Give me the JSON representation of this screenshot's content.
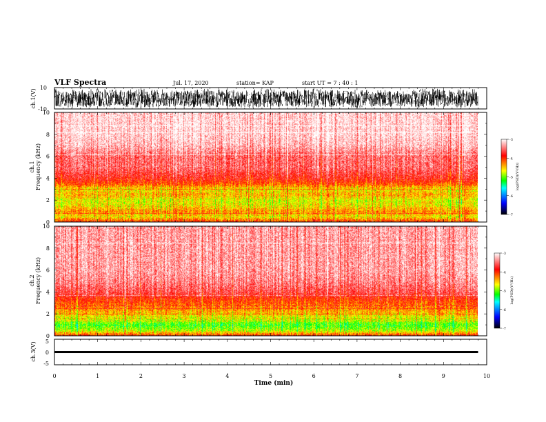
{
  "header": {
    "title": "VLF Spectra",
    "date": "Jul. 17, 2020",
    "station": "station= KAP",
    "start": "start UT =  7 : 40 : 1"
  },
  "colors": {
    "axis": "#000000",
    "background": "#ffffff",
    "colormap": [
      "#000000",
      "#0000ff",
      "#00ff00",
      "#ffff00",
      "#ff0000",
      "#ffffff"
    ]
  },
  "chart_data": [
    {
      "type": "line",
      "panel": "ch1-waveform",
      "ylabel": "ch.1(V)",
      "ylim": [
        -10,
        10
      ],
      "yticks": [
        "10",
        "-10"
      ],
      "xlim": [
        0,
        10
      ],
      "x": [
        0,
        0.5,
        1,
        1.5,
        2,
        2.5,
        3,
        3.5,
        4,
        4.5,
        5,
        5.5,
        6,
        6.5,
        7,
        7.5,
        8,
        8.5,
        9,
        9.5,
        9.8
      ],
      "envelope_max": [
        9,
        8,
        9,
        8,
        9,
        9,
        8,
        9,
        8,
        8,
        9,
        8,
        9,
        9,
        8,
        9,
        8,
        9,
        9,
        8,
        9
      ],
      "envelope_min": [
        -8,
        -9,
        -8,
        -8,
        -9,
        -8,
        -8,
        -9,
        -8,
        -9,
        -8,
        -8,
        -9,
        -8,
        -9,
        -8,
        -8,
        -9,
        -8,
        -9,
        -8
      ]
    },
    {
      "type": "heatmap",
      "panel": "ch1-spectrogram",
      "ylabel": "Frequency (kHz)",
      "channel_label": "ch.1",
      "xlim": [
        0,
        9.8
      ],
      "ylim": [
        0,
        10
      ],
      "yticks": [
        "0",
        "2",
        "4",
        "6",
        "8",
        "10"
      ],
      "colorbar": {
        "label": "log(PSD)(V²/Hz)",
        "range": [
          -7,
          -3
        ],
        "ticks": [
          "-3",
          "-4",
          "-5",
          "-6",
          "-7"
        ]
      },
      "freq_khz": [
        0,
        0.5,
        1,
        1.5,
        2,
        2.5,
        3,
        3.5,
        4,
        5,
        6,
        7,
        8,
        9,
        10
      ],
      "typical_log_psd": [
        -3.9,
        -4.6,
        -4.3,
        -4.6,
        -4.7,
        -4.4,
        -4.6,
        -4.1,
        -3.8,
        -3.5,
        -3.5,
        -3.2,
        -3.1,
        -3.1,
        -3.1
      ]
    },
    {
      "type": "heatmap",
      "panel": "ch2-spectrogram",
      "ylabel": "Frequency (kHz)",
      "channel_label": "ch.2",
      "xlim": [
        0,
        9.8
      ],
      "ylim": [
        0,
        10
      ],
      "yticks": [
        "0",
        "2",
        "4",
        "6",
        "8",
        "10"
      ],
      "colorbar": {
        "label": "log(PSD)(V²/Hz)",
        "range": [
          -7,
          -3
        ],
        "ticks": [
          "-3",
          "-4",
          "-5",
          "-6",
          "-7"
        ]
      },
      "freq_khz": [
        0,
        0.5,
        1,
        1.5,
        2,
        2.5,
        3,
        3.5,
        4,
        5,
        6,
        7,
        8,
        9,
        10
      ],
      "typical_log_psd": [
        -3.9,
        -4.8,
        -5.1,
        -4.8,
        -4.5,
        -4.3,
        -4.1,
        -3.9,
        -3.6,
        -3.4,
        -3.3,
        -3.3,
        -3.3,
        -3.3,
        -3.3
      ]
    },
    {
      "type": "line",
      "panel": "ch3-waveform",
      "ylabel": "ch.3(V)",
      "ylim": [
        -5,
        5
      ],
      "yticks": [
        "5",
        "0",
        "-5"
      ],
      "xlim": [
        0,
        10
      ],
      "x": [
        0,
        9.8
      ],
      "envelope_max": [
        0.4,
        0.4
      ],
      "envelope_min": [
        -0.4,
        -0.4
      ]
    }
  ],
  "xaxis": {
    "label": "Time (min)",
    "range": [
      0,
      10
    ],
    "ticks": [
      "0",
      "1",
      "2",
      "3",
      "4",
      "5",
      "6",
      "7",
      "8",
      "9",
      "10"
    ]
  }
}
